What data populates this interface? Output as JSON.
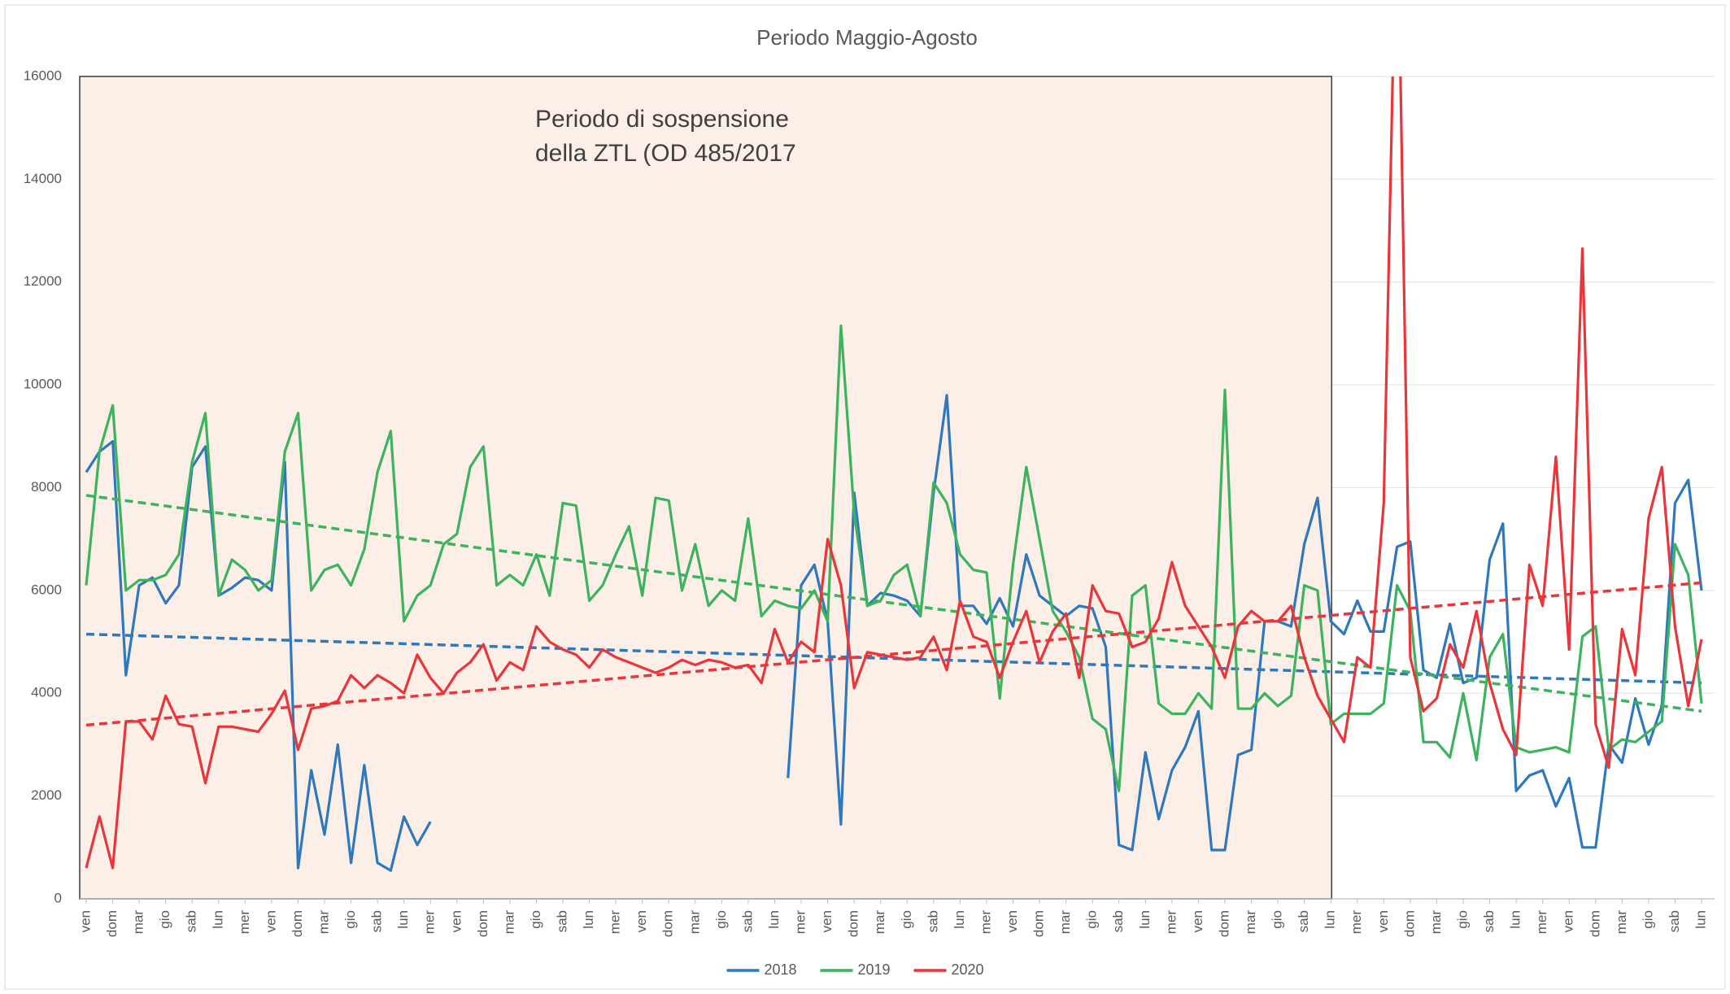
{
  "chart_data": {
    "type": "line",
    "title": "Periodo Maggio-Agosto",
    "categories": [
      "ven",
      null,
      "dom",
      null,
      "mar",
      null,
      "gio",
      null,
      "sab",
      null,
      "lun",
      null,
      "mer",
      null,
      "ven",
      null,
      "dom",
      null,
      "mar",
      null,
      "gio",
      null,
      "sab",
      null,
      "lun",
      null,
      "mer",
      null,
      "ven",
      null,
      "dom",
      null,
      "mar",
      null,
      "gio",
      null,
      "sab",
      null,
      "lun",
      null,
      "mer",
      null,
      "ven",
      null,
      "dom",
      null,
      "mar",
      null,
      "gio",
      null,
      "sab",
      null,
      "lun",
      null,
      "mer",
      null,
      "ven",
      null,
      "dom",
      null,
      "mar",
      null,
      "gio",
      null,
      "sab",
      null,
      "lun",
      null,
      "mer",
      null,
      "ven",
      null,
      "dom",
      null,
      "mar",
      null,
      "gio",
      null,
      "sab",
      null,
      "lun",
      null,
      "mer",
      null,
      "ven",
      null,
      "dom",
      null,
      "mar",
      null,
      "gio",
      null,
      "sab",
      null,
      "lun",
      null,
      "mer",
      null,
      "ven",
      null,
      "dom",
      null,
      "mar",
      null,
      "gio",
      null,
      "sab",
      null,
      "lun",
      null,
      "mer",
      null,
      "ven",
      null,
      "dom",
      null,
      "mar",
      null,
      "gio",
      null,
      "sab",
      null,
      "lun"
    ],
    "series": [
      {
        "name": "2018",
        "color": "#2f78bd",
        "trend": [
          5150,
          4200
        ],
        "values": [
          8300,
          8700,
          8900,
          4350,
          6100,
          6250,
          5750,
          6100,
          8400,
          8800,
          5900,
          6050,
          6250,
          6200,
          6000,
          8500,
          600,
          2500,
          1250,
          3000,
          700,
          2600,
          700,
          550,
          1600,
          1050,
          1500,
          null,
          null,
          null,
          null,
          null,
          null,
          null,
          null,
          null,
          null,
          null,
          null,
          null,
          null,
          null,
          null,
          null,
          null,
          null,
          null,
          null,
          null,
          null,
          null,
          null,
          null,
          2350,
          6100,
          6500,
          5400,
          1450,
          7900,
          5700,
          5950,
          5900,
          5800,
          5500,
          7900,
          9800,
          5700,
          5700,
          5350,
          5850,
          5300,
          6700,
          5900,
          5700,
          5500,
          5700,
          5650,
          4900,
          1050,
          950,
          2850,
          1550,
          2500,
          2950,
          3650,
          950,
          950,
          2800,
          2900,
          5400,
          5400,
          5300,
          6900,
          7800,
          5400,
          5150,
          5800,
          5200,
          5200,
          6850,
          6950,
          4450,
          4300,
          5350,
          4200,
          4300,
          6600,
          7300,
          2100,
          2400,
          2500,
          1800,
          2350,
          1000,
          1000,
          3000,
          2650,
          3900,
          3000,
          3750,
          7700,
          8150,
          6000
        ]
      },
      {
        "name": "2019",
        "color": "#3cb35c",
        "trend": [
          7850,
          3650
        ],
        "values": [
          6100,
          8700,
          9600,
          6000,
          6200,
          6200,
          6300,
          6700,
          8500,
          9450,
          5900,
          6600,
          6400,
          6000,
          6200,
          8700,
          9450,
          6000,
          6400,
          6500,
          6100,
          6800,
          8300,
          9100,
          5400,
          5900,
          6100,
          6900,
          7100,
          8400,
          8800,
          6100,
          6300,
          6100,
          6700,
          5900,
          7700,
          7650,
          5800,
          6100,
          6700,
          7250,
          5900,
          7800,
          7750,
          6000,
          6900,
          5700,
          6000,
          5800,
          7400,
          5500,
          5800,
          5700,
          5650,
          6000,
          5400,
          11150,
          7500,
          5700,
          5800,
          6300,
          6500,
          5500,
          8100,
          7700,
          6700,
          6400,
          6350,
          3900,
          6500,
          8400,
          7000,
          5600,
          5200,
          4700,
          3500,
          3300,
          2100,
          5900,
          6100,
          3800,
          3600,
          3600,
          4000,
          3700,
          9900,
          3700,
          3700,
          4000,
          3750,
          3950,
          6100,
          6000,
          3400,
          3600,
          3600,
          3600,
          3800,
          6100,
          5600,
          3050,
          3050,
          2750,
          4000,
          2700,
          4700,
          5150,
          2950,
          2850,
          2900,
          2950,
          2850,
          5100,
          5300,
          2900,
          3100,
          3050,
          3250,
          3450,
          6900,
          6300,
          3800
        ]
      },
      {
        "name": "2020",
        "color": "#e8363a",
        "trend": [
          3380,
          6150
        ],
        "values": [
          600,
          1600,
          600,
          3450,
          3450,
          3100,
          3950,
          3400,
          3350,
          2250,
          3350,
          3350,
          3300,
          3250,
          3600,
          4050,
          2900,
          3700,
          3750,
          3850,
          4350,
          4100,
          4350,
          4200,
          4000,
          4750,
          4300,
          4000,
          4400,
          4600,
          4950,
          4250,
          4600,
          4450,
          5300,
          5000,
          4850,
          4750,
          4500,
          4850,
          4700,
          4600,
          4500,
          4400,
          4500,
          4650,
          4550,
          4650,
          4600,
          4500,
          4550,
          4200,
          5250,
          4600,
          5000,
          4800,
          7000,
          6100,
          4100,
          4800,
          4750,
          4700,
          4650,
          4700,
          5100,
          4450,
          5800,
          5100,
          5000,
          4300,
          5000,
          5600,
          4600,
          5200,
          5550,
          4300,
          6100,
          5600,
          5550,
          4900,
          5000,
          5450,
          6550,
          5700,
          5300,
          4900,
          4300,
          5300,
          5600,
          5400,
          5400,
          5700,
          4700,
          3950,
          3500,
          3050,
          4700,
          4500,
          7700,
          20000,
          4700,
          3650,
          3900,
          4950,
          4500,
          5600,
          4200,
          3300,
          2800,
          6500,
          5700,
          8600,
          4850,
          12650,
          3400,
          2550,
          5250,
          4350,
          7400,
          8400,
          5300,
          3750,
          5050
        ]
      }
    ],
    "highlight": {
      "from": 0,
      "to": 94,
      "label": [
        "Periodo di sospensione",
        "della ZTL (OD 485/2017"
      ]
    },
    "ylim": [
      0,
      16000
    ],
    "yticks": [
      0,
      2000,
      4000,
      6000,
      8000,
      10000,
      12000,
      14000,
      16000
    ],
    "grid": true,
    "legend": "bottom"
  }
}
